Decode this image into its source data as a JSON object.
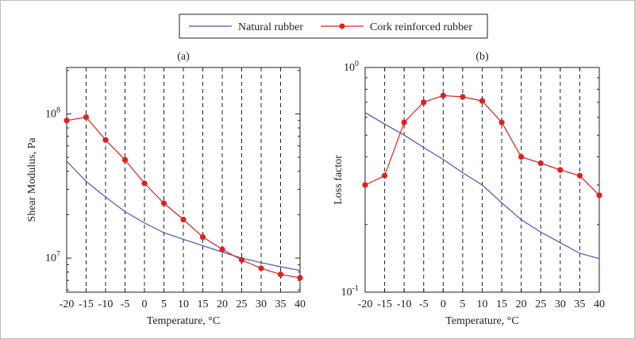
{
  "legend": {
    "entries": [
      {
        "name": "Natural rubber",
        "color": "#4657b8",
        "marker": "none"
      },
      {
        "name": "Cork reinforced rubber",
        "color": "#e02020",
        "marker": "circle"
      }
    ]
  },
  "chart_data": [
    {
      "type": "line",
      "title": "(a)",
      "xlabel": "Temperature, °C",
      "ylabel": "Shear Modulus, Pa",
      "yscale": "log",
      "x": [
        -20,
        -15,
        -10,
        -5,
        0,
        5,
        10,
        15,
        20,
        25,
        30,
        35,
        40
      ],
      "xticks": [
        "-20",
        "-15",
        "-10",
        "-5",
        "0",
        "5",
        "10",
        "15",
        "20",
        "25",
        "30",
        "35",
        "40"
      ],
      "xlim": [
        -20,
        40
      ],
      "ylim": [
        5800000,
        210000000
      ],
      "yticks": [
        {
          "value": 10000000,
          "base": "10",
          "exp": "7"
        },
        {
          "value": 100000000,
          "base": "10",
          "exp": "8"
        }
      ],
      "grid": "vertical dashed",
      "series": [
        {
          "name": "Natural rubber",
          "color": "#4657b8",
          "values": [
            47000000,
            34000000,
            26500000,
            21000000,
            17500000,
            15000000,
            13500000,
            12200000,
            11000000,
            10000000,
            9300000,
            8700000,
            8200000
          ]
        },
        {
          "name": "Cork reinforced rubber",
          "color": "#e02020",
          "values": [
            90000000,
            95000000,
            66000000,
            48000000,
            33000000,
            24000000,
            18500000,
            14000000,
            11500000,
            9700000,
            8500000,
            7700000,
            7300000
          ]
        }
      ]
    },
    {
      "type": "line",
      "title": "(b)",
      "xlabel": "Temperature, °C",
      "ylabel": "Loss factor",
      "yscale": "log",
      "x": [
        -20,
        -15,
        -10,
        -5,
        0,
        5,
        10,
        15,
        20,
        25,
        30,
        35,
        40
      ],
      "xticks": [
        "-20",
        "-15",
        "-10",
        "-5",
        "0",
        "5",
        "10",
        "15",
        "20",
        "25",
        "30",
        "35",
        "40"
      ],
      "xlim": [
        -20,
        40
      ],
      "ylim": [
        0.1,
        1.0
      ],
      "yticks": [
        {
          "value": 0.1,
          "base": "10",
          "exp": "-1"
        },
        {
          "value": 1.0,
          "base": "10",
          "exp": "0"
        }
      ],
      "grid": "vertical dashed",
      "series": [
        {
          "name": "Natural rubber",
          "color": "#4657b8",
          "values": [
            0.63,
            0.56,
            0.5,
            0.44,
            0.39,
            0.34,
            0.3,
            0.25,
            0.21,
            0.185,
            0.166,
            0.149,
            0.141
          ]
        },
        {
          "name": "Cork reinforced rubber",
          "color": "#e02020",
          "values": [
            0.3,
            0.33,
            0.57,
            0.7,
            0.75,
            0.74,
            0.71,
            0.57,
            0.4,
            0.375,
            0.35,
            0.33,
            0.27
          ]
        }
      ]
    }
  ]
}
